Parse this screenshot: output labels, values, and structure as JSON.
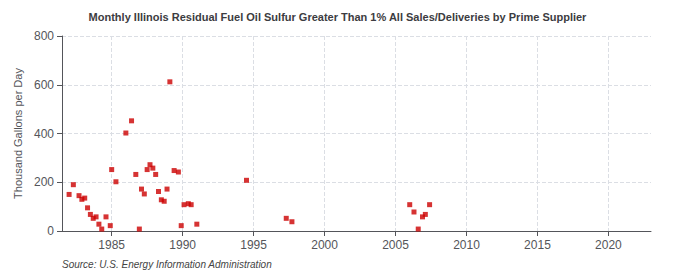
{
  "chart_data": {
    "type": "scatter",
    "title": "Monthly Illinois Residual Fuel Oil Sulfur Greater Than 1% All Sales/Deliveries by Prime Supplier",
    "ylabel": "Thousand Gallons per Day",
    "annotation": "Source: U.S. Energy Information Administration",
    "color": "#cc0000",
    "marker": "square",
    "grid": true,
    "xlim": [
      1981.5,
      2023
    ],
    "ylim": [
      0,
      800
    ],
    "xticks": [
      1985,
      1990,
      1995,
      2000,
      2005,
      2010,
      2015,
      2020
    ],
    "yticks": [
      0,
      200,
      400,
      600,
      800
    ],
    "x": [
      1982.0,
      1982.3,
      1982.7,
      1982.9,
      1983.1,
      1983.3,
      1983.5,
      1983.7,
      1983.9,
      1984.1,
      1984.3,
      1984.6,
      1984.9,
      1985.0,
      1985.3,
      1986.0,
      1986.4,
      1986.7,
      1986.95,
      1987.1,
      1987.3,
      1987.5,
      1987.7,
      1987.9,
      1988.1,
      1988.3,
      1988.5,
      1988.7,
      1988.9,
      1989.1,
      1989.4,
      1989.7,
      1989.9,
      1990.1,
      1990.4,
      1990.6,
      1991.0,
      1994.5,
      1997.3,
      1997.7,
      2006.0,
      2006.3,
      2006.6,
      2006.9,
      2007.1,
      2007.4
    ],
    "values": [
      150,
      190,
      145,
      130,
      135,
      95,
      68,
      52,
      58,
      28,
      8,
      58,
      22,
      252,
      202,
      402,
      452,
      232,
      8,
      172,
      152,
      252,
      272,
      258,
      232,
      162,
      128,
      122,
      172,
      612,
      248,
      242,
      22,
      108,
      112,
      108,
      28,
      208,
      52,
      38,
      108,
      78,
      8,
      58,
      68,
      108
    ]
  }
}
